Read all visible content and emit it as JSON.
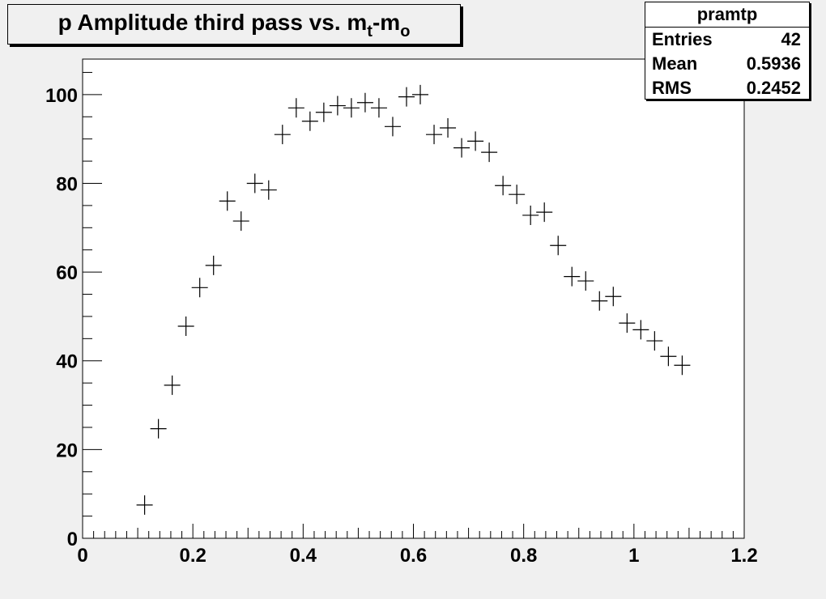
{
  "title": {
    "main": "p Amplitude third pass vs. m",
    "sub1": "t",
    "mid": "-m",
    "sub2": "o"
  },
  "stats": {
    "name": "pramtp",
    "rows": [
      {
        "label": "Entries",
        "value": "42"
      },
      {
        "label": "Mean",
        "value": "0.5936"
      },
      {
        "label": "RMS",
        "value": "0.2452"
      }
    ]
  },
  "colors": {
    "frame_background": "#f0f0f0",
    "plot_background": "#ffffff",
    "marker": "#000000"
  },
  "chart_data": {
    "type": "scatter",
    "marker": "cross",
    "title": "p Amplitude third pass vs. m_t-m_o",
    "xlabel": "",
    "ylabel": "",
    "xlim": [
      0,
      1.2
    ],
    "ylim": [
      0,
      108
    ],
    "x_ticks": [
      0,
      0.2,
      0.4,
      0.6,
      0.8,
      1,
      1.2
    ],
    "x_tick_labels": [
      "0",
      "0.2",
      "0.4",
      "0.6",
      "0.8",
      "1",
      "1.2"
    ],
    "y_ticks": [
      0,
      20,
      40,
      60,
      80,
      100
    ],
    "y_tick_labels": [
      "0",
      "20",
      "40",
      "60",
      "80",
      "100"
    ],
    "grid": false,
    "legend": "none",
    "x": [
      0.1125,
      0.1375,
      0.1625,
      0.1875,
      0.2125,
      0.2375,
      0.2625,
      0.2875,
      0.3125,
      0.3375,
      0.3625,
      0.3875,
      0.4125,
      0.4375,
      0.4625,
      0.4875,
      0.5125,
      0.5375,
      0.5625,
      0.5875,
      0.6125,
      0.6375,
      0.6625,
      0.6875,
      0.7125,
      0.7375,
      0.7625,
      0.7875,
      0.8125,
      0.8375,
      0.8625,
      0.8875,
      0.9125,
      0.9375,
      0.9625,
      0.9875,
      1.0125,
      1.0375,
      1.0625,
      1.0875
    ],
    "y": [
      7.5,
      24.7,
      34.5,
      47.8,
      56.5,
      61.5,
      76.0,
      71.5,
      80.0,
      78.5,
      91.0,
      97.0,
      94.0,
      96.0,
      97.5,
      97.0,
      98.2,
      97.0,
      92.8,
      99.5,
      100.0,
      91.0,
      92.5,
      88.0,
      89.5,
      87.0,
      79.5,
      77.5,
      72.8,
      73.5,
      66.0,
      59.0,
      58.0,
      53.5,
      54.5,
      48.5,
      47.0,
      44.5,
      41.0,
      39.0
    ]
  }
}
